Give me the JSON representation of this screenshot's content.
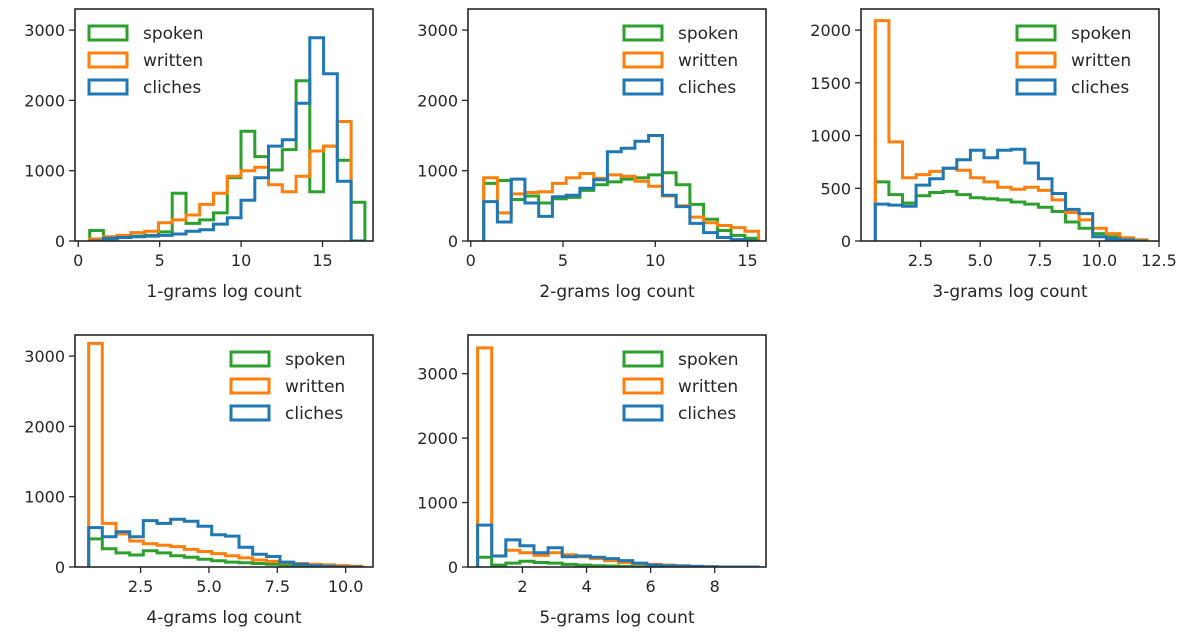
{
  "colors": {
    "spoken": "#2ca02c",
    "written": "#ff7f0e",
    "cliches": "#1f77b4"
  },
  "legend_order": [
    "spoken",
    "written",
    "cliches"
  ],
  "chart_data": [
    {
      "type": "histogram",
      "xlabel": "1-grams log count",
      "xlim": [
        -0.2,
        18.1
      ],
      "ylim": [
        0,
        3300
      ],
      "xticks": [
        0,
        5,
        10,
        15
      ],
      "xtick_labels": [
        "0",
        "5",
        "10",
        "15"
      ],
      "yticks": [
        0,
        1000,
        2000,
        3000
      ],
      "ytick_labels": [
        "0",
        "1000",
        "2000",
        "3000"
      ],
      "legend_position": "upper left",
      "bins": {
        "start": 0.7,
        "width": 0.845,
        "count": 20
      },
      "series": [
        {
          "name": "spoken",
          "values": [
            150,
            30,
            60,
            70,
            80,
            130,
            680,
            250,
            300,
            400,
            900,
            1560,
            1200,
            1010,
            1300,
            2280,
            700,
            1350,
            1150,
            550
          ]
        },
        {
          "name": "written",
          "values": [
            30,
            60,
            80,
            120,
            140,
            260,
            300,
            370,
            520,
            680,
            920,
            1000,
            1050,
            800,
            700,
            920,
            1280,
            1350,
            1700,
            0
          ]
        },
        {
          "name": "cliches",
          "values": [
            0,
            40,
            50,
            60,
            70,
            80,
            100,
            140,
            160,
            240,
            330,
            580,
            900,
            1350,
            1440,
            1960,
            2890,
            2380,
            850,
            0
          ]
        }
      ]
    },
    {
      "type": "histogram",
      "xlabel": "2-grams log count",
      "xlim": [
        -0.15,
        16.0
      ],
      "ylim": [
        0,
        3300
      ],
      "xticks": [
        0,
        5,
        10,
        15
      ],
      "xtick_labels": [
        "0",
        "5",
        "10",
        "15"
      ],
      "yticks": [
        0,
        1000,
        2000,
        3000
      ],
      "yticks_labels_note": "",
      "ytick_labels": [
        "0",
        "1000",
        "2000",
        "3000"
      ],
      "legend_position": "upper right",
      "bins": {
        "start": 0.7,
        "width": 0.745,
        "count": 20
      },
      "series": [
        {
          "name": "spoken",
          "values": [
            820,
            860,
            590,
            640,
            540,
            600,
            620,
            720,
            800,
            840,
            880,
            900,
            940,
            970,
            800,
            520,
            310,
            150,
            80,
            40
          ]
        },
        {
          "name": "written",
          "values": [
            900,
            400,
            670,
            690,
            700,
            820,
            900,
            960,
            890,
            940,
            920,
            850,
            780,
            640,
            500,
            340,
            260,
            220,
            190,
            140
          ]
        },
        {
          "name": "cliches",
          "values": [
            560,
            270,
            880,
            540,
            350,
            630,
            650,
            750,
            870,
            1270,
            1320,
            1420,
            1500,
            650,
            490,
            250,
            120,
            50,
            20,
            0
          ]
        }
      ]
    },
    {
      "type": "histogram",
      "xlabel": "3-grams log count",
      "xlim": [
        0.0,
        12.5
      ],
      "ylim": [
        0,
        2200
      ],
      "xticks": [
        2.5,
        5.0,
        7.5,
        10.0,
        12.5
      ],
      "xtick_labels": [
        "2.5",
        "5.0",
        "7.5",
        "10.0",
        "12.5"
      ],
      "yticks": [
        0,
        500,
        1000,
        1500,
        2000
      ],
      "ytick_labels": [
        "0",
        "500",
        "1000",
        "1500",
        "2000"
      ],
      "legend_position": "upper right",
      "bins": {
        "start": 0.6,
        "width": 0.57,
        "count": 20
      },
      "series": [
        {
          "name": "spoken",
          "values": [
            560,
            440,
            360,
            430,
            460,
            470,
            440,
            410,
            400,
            390,
            370,
            350,
            320,
            280,
            180,
            120,
            70,
            40,
            20,
            10
          ]
        },
        {
          "name": "written",
          "values": [
            2090,
            940,
            600,
            630,
            660,
            690,
            670,
            600,
            560,
            510,
            490,
            510,
            480,
            390,
            270,
            200,
            120,
            70,
            30,
            10
          ]
        },
        {
          "name": "cliches",
          "values": [
            350,
            340,
            330,
            530,
            590,
            690,
            770,
            860,
            790,
            860,
            870,
            740,
            590,
            450,
            300,
            260,
            40,
            20,
            10,
            0
          ]
        }
      ]
    },
    {
      "type": "histogram",
      "xlabel": "4-grams log count",
      "xlim": [
        0.1,
        11.0
      ],
      "ylim": [
        0,
        3300
      ],
      "xticks": [
        2.5,
        5.0,
        7.5,
        10.0
      ],
      "xtick_labels": [
        "2.5",
        "5.0",
        "7.5",
        "10.0"
      ],
      "yticks": [
        0,
        1000,
        2000,
        3000
      ],
      "ytick_labels": [
        "0",
        "1000",
        "2000",
        "3000"
      ],
      "legend_position": "upper right",
      "bins": {
        "start": 0.6,
        "width": 0.5,
        "count": 20
      },
      "series": [
        {
          "name": "spoken",
          "values": [
            400,
            260,
            200,
            170,
            230,
            200,
            160,
            140,
            110,
            90,
            70,
            60,
            50,
            40,
            30,
            20,
            15,
            10,
            5,
            0
          ]
        },
        {
          "name": "written",
          "values": [
            3180,
            620,
            470,
            370,
            330,
            310,
            290,
            250,
            220,
            190,
            160,
            130,
            100,
            80,
            60,
            50,
            40,
            30,
            20,
            10
          ]
        },
        {
          "name": "cliches",
          "values": [
            560,
            430,
            500,
            430,
            660,
            620,
            680,
            650,
            580,
            460,
            440,
            280,
            180,
            150,
            70,
            40,
            20,
            10,
            0,
            0
          ]
        }
      ]
    },
    {
      "type": "histogram",
      "xlabel": "5-grams log count",
      "xlim": [
        0.3,
        9.6
      ],
      "ylim": [
        0,
        3600
      ],
      "xticks": [
        2,
        4,
        6,
        8
      ],
      "xtick_labels": [
        "2",
        "4",
        "6",
        "8"
      ],
      "yticks": [
        0,
        1000,
        2000,
        3000
      ],
      "ytick_labels": [
        "0",
        "1000",
        "2000",
        "3000"
      ],
      "legend_position": "upper right",
      "bins": {
        "start": 0.6,
        "width": 0.44,
        "count": 20
      },
      "series": [
        {
          "name": "spoken",
          "values": [
            150,
            30,
            60,
            90,
            70,
            60,
            40,
            30,
            20,
            15,
            10,
            5,
            5,
            0,
            0,
            0,
            0,
            0,
            0,
            0
          ]
        },
        {
          "name": "written",
          "values": [
            3400,
            170,
            260,
            220,
            180,
            220,
            190,
            160,
            130,
            100,
            70,
            50,
            40,
            30,
            20,
            10,
            5,
            0,
            0,
            0
          ]
        },
        {
          "name": "cliches",
          "values": [
            650,
            170,
            420,
            330,
            220,
            300,
            160,
            170,
            150,
            130,
            100,
            60,
            30,
            20,
            15,
            10,
            5,
            0,
            0,
            0
          ]
        }
      ]
    }
  ]
}
